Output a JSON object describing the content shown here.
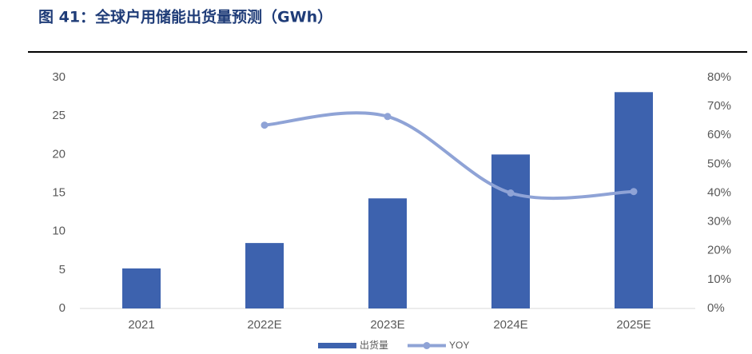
{
  "chart_data": {
    "type": "bar_line",
    "title": "图 41：全球户用储能出货量预测（GWh）",
    "categories": [
      "2021",
      "2022E",
      "2023E",
      "2024E",
      "2025E"
    ],
    "series": [
      {
        "name": "出货量",
        "type": "bar",
        "color": "#3d62ae",
        "values": [
          5.2,
          8.5,
          14.3,
          20,
          28.1
        ]
      },
      {
        "name": "YOY",
        "type": "line",
        "axis": "y2",
        "color": "#8fa3d6",
        "values": [
          null,
          63.5,
          66.5,
          40,
          40.5
        ]
      }
    ],
    "ylim": [
      0,
      30
    ],
    "yticks": [
      0,
      5,
      10,
      15,
      20,
      25,
      30
    ],
    "y2lim": [
      0,
      80
    ],
    "y2ticks": [
      {
        "value": 0,
        "label": "0%"
      },
      {
        "value": 10,
        "label": "10%"
      },
      {
        "value": 20,
        "label": "20%"
      },
      {
        "value": 30,
        "label": "30%"
      },
      {
        "value": 40,
        "label": "40%"
      },
      {
        "value": 50,
        "label": "50%"
      },
      {
        "value": 60,
        "label": "60%"
      },
      {
        "value": 70,
        "label": "70%"
      },
      {
        "value": 80,
        "label": "80%"
      }
    ]
  }
}
